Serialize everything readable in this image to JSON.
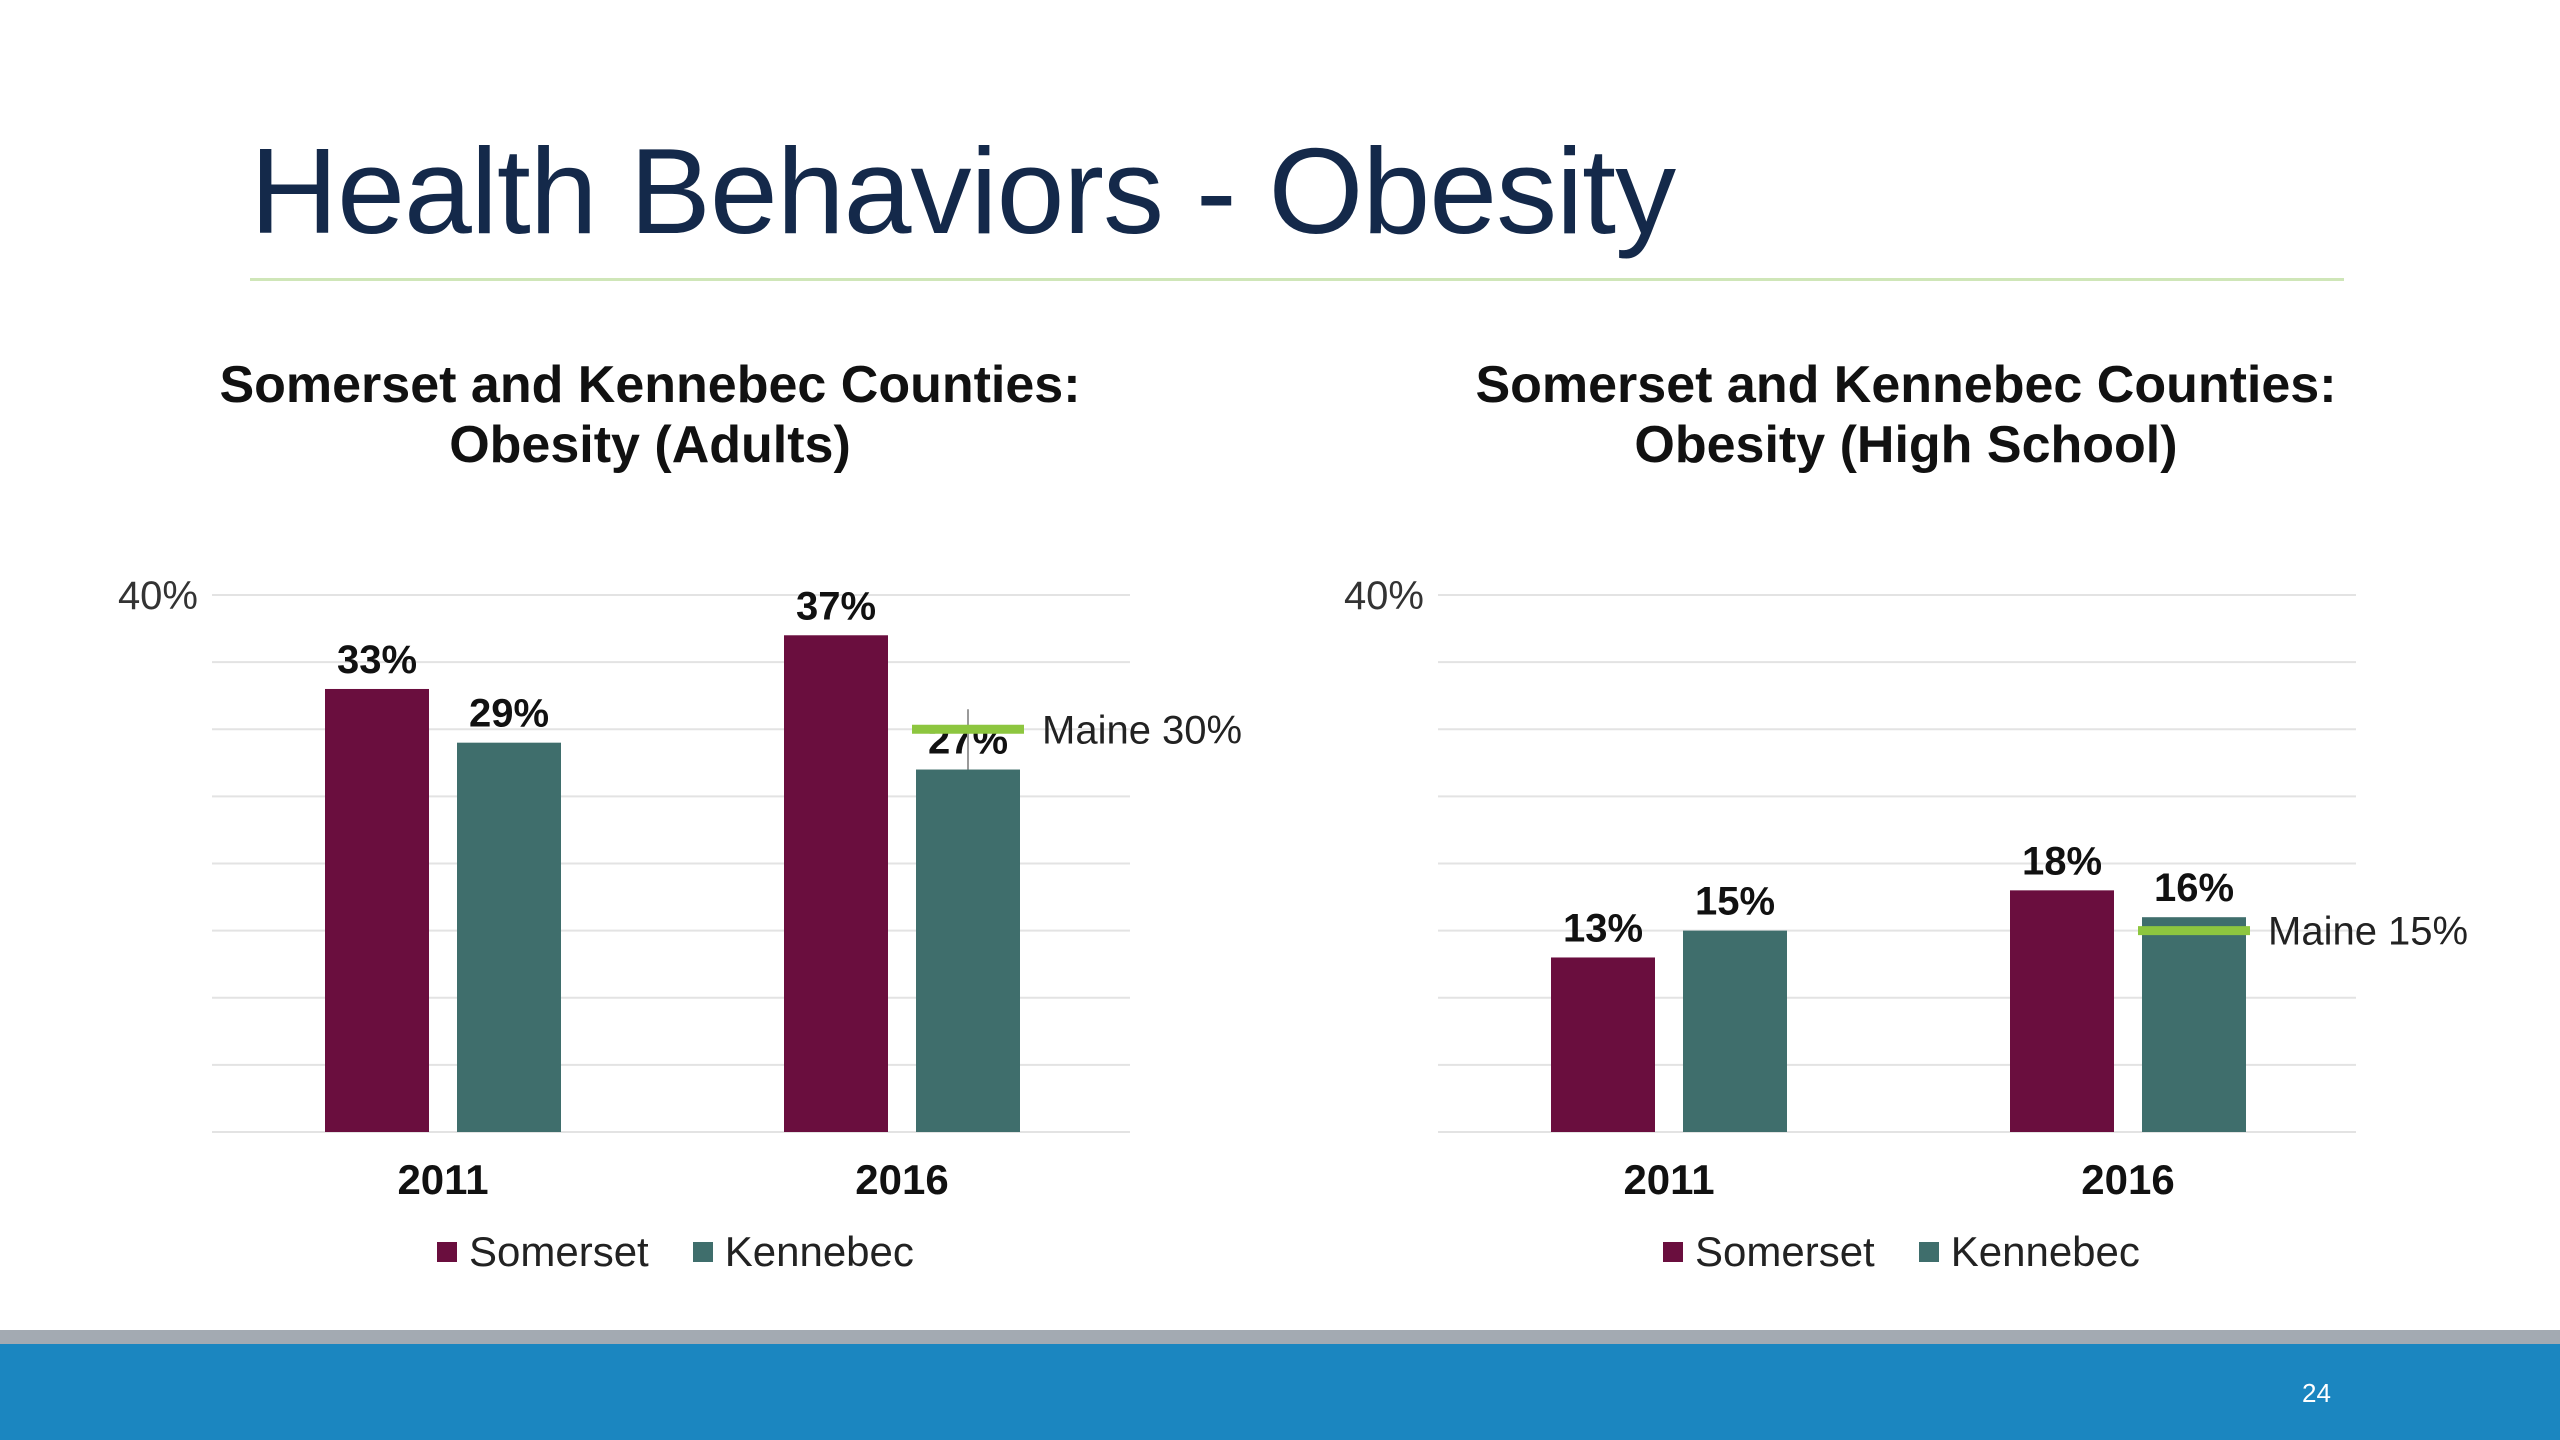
{
  "slide": {
    "title": "Health Behaviors - Obesity",
    "page_number": "24"
  },
  "colors": {
    "somerset": "#6a0e3e",
    "kennebec": "#3f6e6c",
    "maine_marker": "#8dc63f",
    "gridline": "#e3e3e3",
    "title": "#14294a",
    "footer_blue": "#1b86c0",
    "footer_gray": "#a3aab2"
  },
  "chart_data": [
    {
      "type": "bar",
      "title_lines": [
        "Somerset and Kennebec Counties:",
        "Obesity (Adults)"
      ],
      "categories": [
        "2011",
        "2016"
      ],
      "series": [
        {
          "name": "Somerset",
          "values": [
            33,
            37
          ],
          "labels": [
            "33%",
            "37%"
          ]
        },
        {
          "name": "Kennebec",
          "values": [
            29,
            27
          ],
          "labels": [
            "29%",
            "27%"
          ]
        }
      ],
      "ylim": [
        0,
        40
      ],
      "y_tick_labels": [
        "40%"
      ],
      "gridlines": 8,
      "reference_line": {
        "label": "Maine 30%",
        "value": 30,
        "category": "2016",
        "series": "Kennebec"
      },
      "legend": "bottom-center"
    },
    {
      "type": "bar",
      "title_lines": [
        "Somerset and Kennebec Counties:",
        "Obesity (High School)"
      ],
      "categories": [
        "2011",
        "2016"
      ],
      "series": [
        {
          "name": "Somerset",
          "values": [
            13,
            18
          ],
          "labels": [
            "13%",
            "18%"
          ]
        },
        {
          "name": "Kennebec",
          "values": [
            15,
            16
          ],
          "labels": [
            "15%",
            "16%"
          ]
        }
      ],
      "ylim": [
        0,
        40
      ],
      "y_tick_labels": [
        "40%"
      ],
      "gridlines": 8,
      "reference_line": {
        "label": "Maine 15%",
        "value": 15,
        "category": "2016",
        "series": "Kennebec"
      },
      "legend": "bottom-center"
    }
  ]
}
